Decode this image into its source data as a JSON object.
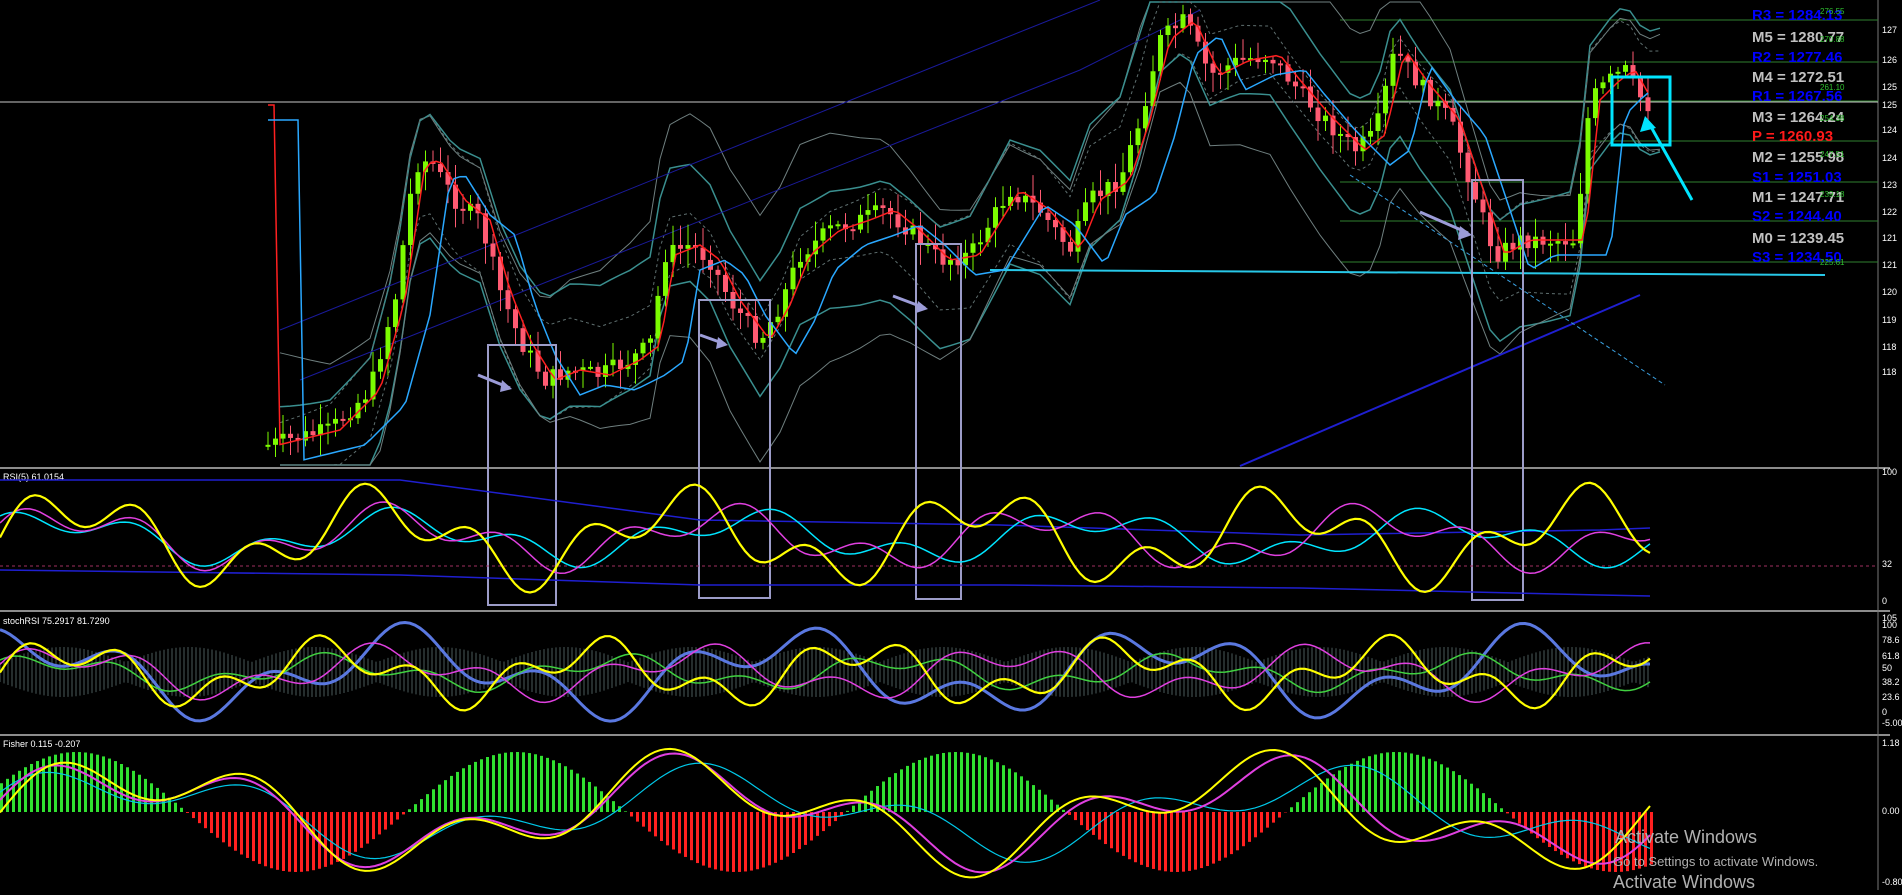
{
  "colors": {
    "background": "#000000",
    "bull_candle": "#7CFC00",
    "bear_candle": "#FF5A72",
    "rsi_line": "#FFFF00",
    "highlight_box": "#9c9cc8",
    "trend_line": "#1f1fd0",
    "cyan_mark": "#00e5ff"
  },
  "pivots": [
    {
      "label": "R3 = 1284.13",
      "color": "#0000ff"
    },
    {
      "label": "M5 = 1280.77",
      "color": "#c0c0c0"
    },
    {
      "label": "R2 = 1277.46",
      "color": "#0000ff"
    },
    {
      "label": "M4 = 1272.51",
      "color": "#c0c0c0"
    },
    {
      "label": "R1 = 1267.56",
      "color": "#0000ff"
    },
    {
      "label": "M3 = 1264.24",
      "color": "#c0c0c0"
    },
    {
      "label": "P = 1260.93",
      "color": "#ff1a1a"
    },
    {
      "label": "M2 = 1255.98",
      "color": "#c0c0c0"
    },
    {
      "label": "S1 = 1251.03",
      "color": "#0000ff"
    },
    {
      "label": "M1 = 1247.71",
      "color": "#c0c0c0"
    },
    {
      "label": "S2 = 1244.40",
      "color": "#0000ff"
    },
    {
      "label": "M0 = 1239.45",
      "color": "#c0c0c0"
    },
    {
      "label": "S3 = 1234.50",
      "color": "#0000ff"
    }
  ],
  "fib_labels": [
    "276.55",
    "270.88",
    "261.10",
    "254.38",
    "247.51",
    "239.18",
    "225.61"
  ],
  "price_axis": [
    "127",
    "126",
    "125",
    "125",
    "124",
    "124",
    "123",
    "122",
    "121",
    "121",
    "120",
    "119",
    "118",
    "118"
  ],
  "panels": {
    "rsi": {
      "title": "RSI(5) 61.0154",
      "axis": [
        "100",
        "32",
        "0"
      ]
    },
    "stoch": {
      "title": "stochRSI 75.2917 81.7290",
      "axis": [
        "105",
        "100",
        "78.6",
        "61.8",
        "50",
        "38.2",
        "23.6",
        "0",
        "-5.00"
      ]
    },
    "fisher": {
      "title": "Fisher 0.115 -0.207",
      "axis": [
        "1.18",
        "0.00",
        "-0.80"
      ]
    }
  },
  "watermark": {
    "line1": "Activate Windows",
    "line2": "Go to Settings to activate Windows.",
    "line3": "Activate Windows"
  },
  "chart_data": {
    "type": "candlestick",
    "instrument_price_range": [
      1180,
      1275
    ],
    "highlighted_zones": 5,
    "indicators": [
      "RSI(5)",
      "stochRSI",
      "Fisher"
    ]
  }
}
